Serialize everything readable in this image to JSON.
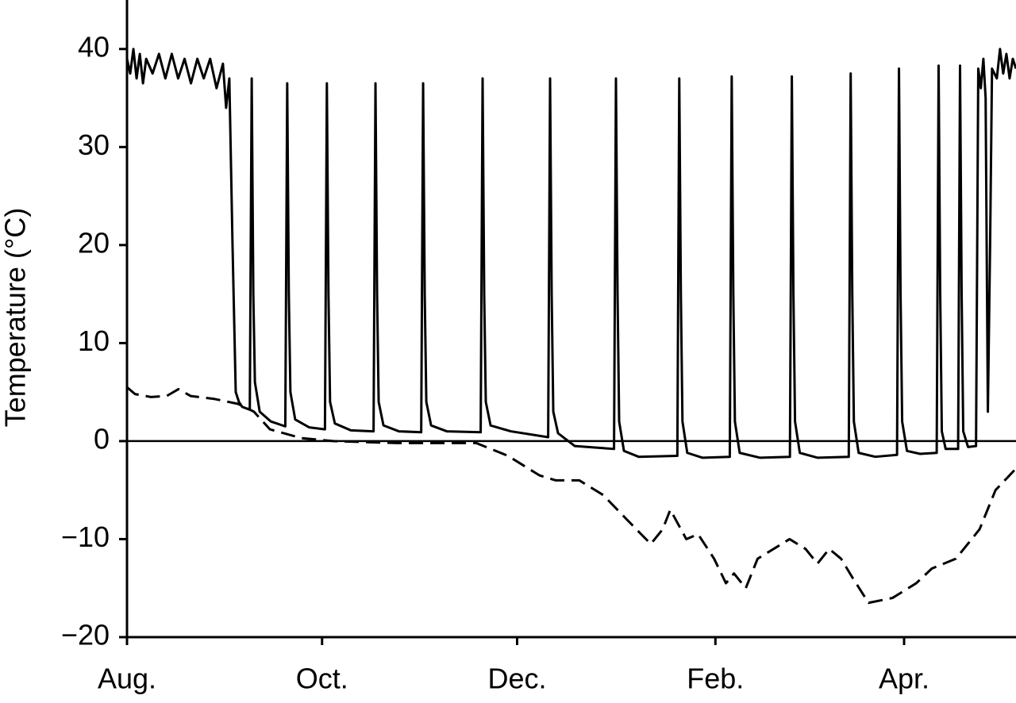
{
  "chart_data": {
    "type": "line",
    "y_label": "Temperature (°C)",
    "xlim": [
      0,
      278
    ],
    "xticks": [
      {
        "value": 0,
        "label": "Aug."
      },
      {
        "value": 61,
        "label": "Oct."
      },
      {
        "value": 122,
        "label": "Dec."
      },
      {
        "value": 184,
        "label": "Feb."
      },
      {
        "value": 243,
        "label": "Apr."
      }
    ],
    "ylim": [
      -20,
      45
    ],
    "yticks": [
      {
        "value": -20,
        "label": "−20"
      },
      {
        "value": -10,
        "label": "−10"
      },
      0,
      10,
      20,
      30,
      40
    ],
    "zero_line": true,
    "series": [
      {
        "color": "#000000",
        "line_style": "solid",
        "x": [
          0,
          1,
          2,
          3,
          4,
          5,
          6,
          8,
          10,
          12,
          14,
          16,
          18,
          20,
          22,
          24,
          26,
          28,
          30,
          31,
          32,
          33,
          34,
          35,
          36,
          38.4,
          39,
          39.5,
          40,
          41.5,
          45,
          49.5,
          50.1,
          50.6,
          51.1,
          52.6,
          57,
          61.9,
          62.5,
          63,
          63.5,
          65,
          70,
          77.1,
          77.7,
          78.2,
          78.7,
          80.2,
          85,
          92,
          92.6,
          93.1,
          93.6,
          95.1,
          100,
          110.6,
          111.2,
          111.7,
          112.2,
          113.7,
          120,
          131.7,
          132.3,
          132.8,
          133.3,
          134.8,
          140,
          152.3,
          152.9,
          153.4,
          153.9,
          155.4,
          160,
          172.1,
          172.7,
          173.2,
          173.7,
          175.2,
          180,
          188.5,
          189.1,
          189.6,
          190.1,
          191.6,
          198,
          207.3,
          207.9,
          208.4,
          208.9,
          210.4,
          216,
          225.7,
          226.3,
          226.8,
          227.3,
          228.8,
          234,
          240.8,
          241.4,
          241.9,
          242.4,
          243.9,
          248,
          253.2,
          253.8,
          254.3,
          254.8,
          256,
          259.9,
          260.5,
          261,
          261.5,
          263,
          265.5,
          266.2,
          267,
          267.8,
          268.5,
          269.2,
          269.9,
          270.5,
          272,
          273,
          274,
          275,
          276,
          277,
          278
        ],
        "values": [
          39,
          37.5,
          40,
          37,
          39.5,
          36.5,
          39,
          37.5,
          39.5,
          37,
          39.5,
          37,
          39,
          36.5,
          39,
          37,
          39,
          36,
          38.5,
          34,
          37,
          20,
          5,
          4,
          3.5,
          3.2,
          37,
          15,
          6,
          3,
          2,
          1.5,
          36.5,
          15,
          5,
          2.2,
          1.4,
          1.2,
          36.5,
          15,
          4,
          1.8,
          1.1,
          1,
          36.5,
          15,
          4,
          1.6,
          1,
          0.9,
          36.5,
          15,
          4,
          1.6,
          1,
          0.9,
          37,
          15,
          4,
          1.6,
          1,
          0.4,
          37,
          15,
          3,
          0.8,
          -0.5,
          -0.8,
          37,
          15,
          2,
          -1,
          -1.6,
          -1.5,
          37,
          15,
          2,
          -1.2,
          -1.7,
          -1.6,
          37.2,
          15,
          2,
          -1.2,
          -1.7,
          -1.6,
          37.2,
          15,
          2,
          -1.2,
          -1.7,
          -1.6,
          37.5,
          15,
          2,
          -1.2,
          -1.6,
          -1.4,
          38,
          15,
          2,
          -1,
          -1.3,
          -1.2,
          38.3,
          15,
          1,
          -0.8,
          -0.8,
          38.3,
          15,
          1,
          -0.6,
          -0.5,
          38,
          36,
          39,
          35,
          3,
          20,
          38,
          37,
          40,
          37.5,
          39.5,
          37,
          39,
          38
        ]
      },
      {
        "color": "#000000",
        "line_style": "dashed",
        "x": [
          0,
          2.5,
          7.4,
          12.4,
          16.1,
          19.9,
          27.3,
          34.7,
          39.7,
          44.7,
          54.6,
          64.5,
          84.4,
          109.2,
          119.1,
          129,
          134,
          141.4,
          148.9,
          156.3,
          163.8,
          167.5,
          169.9,
          172.4,
          174.9,
          178.6,
          183.6,
          187.3,
          189.8,
          193.5,
          197.2,
          202.2,
          207.2,
          212.2,
          215.9,
          219.6,
          223.3,
          227,
          231.9,
          239.4,
          246.8,
          251.7,
          259.2,
          266.6,
          271.6,
          278
        ],
        "values": [
          5.5,
          4.8,
          4.5,
          4.6,
          5.3,
          4.6,
          4.3,
          3.8,
          3,
          1.2,
          0.3,
          0,
          -0.2,
          -0.2,
          -1.5,
          -3.5,
          -4,
          -4,
          -5.5,
          -8,
          -10.5,
          -9,
          -7,
          -8.5,
          -10,
          -9.5,
          -12,
          -14.5,
          -13.5,
          -15,
          -12,
          -11,
          -10,
          -11,
          -12.5,
          -11,
          -12,
          -14,
          -16.5,
          -16,
          -14.5,
          -13,
          -12,
          -9,
          -5,
          -2.8
        ]
      }
    ]
  }
}
